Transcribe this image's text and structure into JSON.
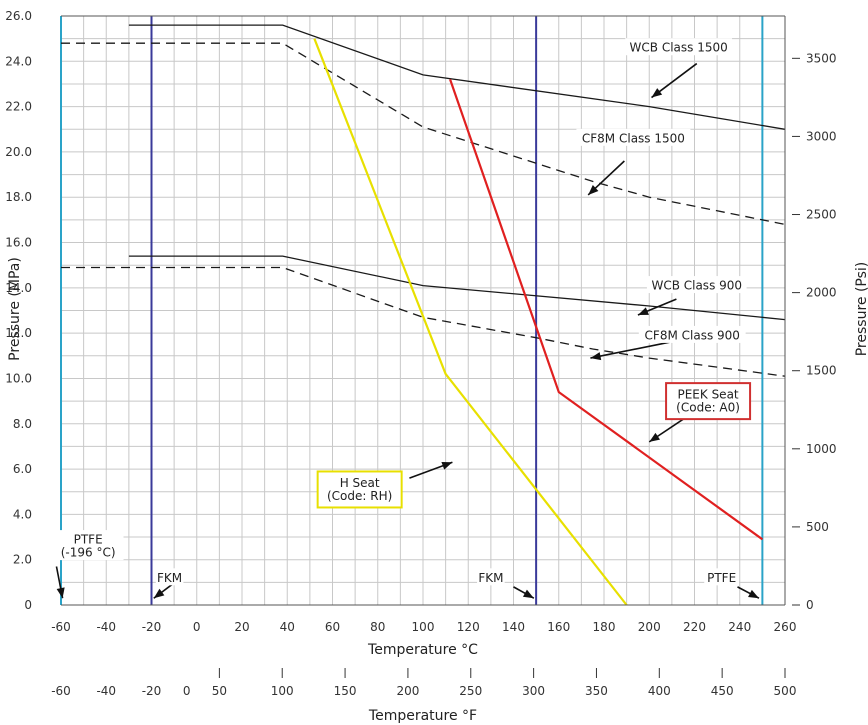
{
  "chart_data": {
    "type": "line",
    "xlabel": "Temperature °C",
    "ylabel": "Pressure (MPa)",
    "y2label": "Pressure (Psi)",
    "x2label": "Temperature °F",
    "xlim": [
      -60,
      260
    ],
    "ylim": [
      0,
      26
    ],
    "x_ticks": [
      -60,
      -40,
      -20,
      0,
      20,
      40,
      60,
      80,
      100,
      120,
      140,
      160,
      180,
      200,
      220,
      240,
      260
    ],
    "y_ticks": [
      "0",
      "2.0",
      "4.0",
      "6.0",
      "8.0",
      "10.0",
      "12.0",
      "14.0",
      "16.0",
      "18.0",
      "20.0",
      "22.0",
      "24.0",
      "26.0"
    ],
    "y2_ticks": [
      0,
      500,
      1000,
      1500,
      2000,
      2500,
      3000,
      3500
    ],
    "f_ticks_left": [
      -60,
      -40,
      -20,
      0
    ],
    "f_ticks": [
      50,
      100,
      150,
      200,
      250,
      300,
      350,
      400,
      450,
      500
    ],
    "grid": true,
    "series": [
      {
        "name": "WCB Class 1500",
        "style": "solid",
        "color": "#1a1a1a",
        "points": [
          [
            -30,
            25.6
          ],
          [
            38,
            25.6
          ],
          [
            100,
            23.4
          ],
          [
            200,
            22.0
          ],
          [
            260,
            21.0
          ]
        ]
      },
      {
        "name": "CF8M Class 1500",
        "style": "dashed",
        "color": "#1a1a1a",
        "points": [
          [
            -60,
            24.8
          ],
          [
            38,
            24.8
          ],
          [
            100,
            21.1
          ],
          [
            175,
            18.7
          ],
          [
            200,
            18.0
          ],
          [
            260,
            16.8
          ]
        ]
      },
      {
        "name": "WCB Class 900",
        "style": "solid",
        "color": "#1a1a1a",
        "points": [
          [
            -30,
            15.4
          ],
          [
            38,
            15.4
          ],
          [
            100,
            14.1
          ],
          [
            200,
            13.2
          ],
          [
            260,
            12.6
          ]
        ]
      },
      {
        "name": "CF8M Class 900",
        "style": "dashed",
        "color": "#1a1a1a",
        "points": [
          [
            -60,
            14.9
          ],
          [
            38,
            14.9
          ],
          [
            100,
            12.7
          ],
          [
            150,
            11.8
          ],
          [
            175,
            11.3
          ],
          [
            200,
            10.9
          ],
          [
            260,
            10.1
          ]
        ]
      },
      {
        "name": "H Seat",
        "style": "solid",
        "color": "#e8e000",
        "points": [
          [
            52,
            25.0
          ],
          [
            110,
            10.2
          ],
          [
            190,
            0
          ]
        ]
      },
      {
        "name": "PEEK Seat",
        "style": "solid",
        "color": "#e02020",
        "points": [
          [
            112,
            23.2
          ],
          [
            160,
            9.4
          ],
          [
            250,
            2.9
          ]
        ]
      }
    ],
    "vertical_lines": [
      {
        "x": -60,
        "color": "#2aa3c8"
      },
      {
        "x": -20,
        "color": "#3a3a9a"
      },
      {
        "x": 150,
        "color": "#3a3a9a"
      },
      {
        "x": 250,
        "color": "#2aa3c8"
      }
    ],
    "annotations": [
      {
        "lines": [
          "WCB Class 1500"
        ],
        "anchor": [
          213,
          24.6
        ]
      },
      {
        "lines": [
          "CF8M Class 1500"
        ],
        "anchor": [
          193,
          20.6
        ]
      },
      {
        "lines": [
          "WCB Class 900"
        ],
        "anchor": [
          221,
          14.1
        ]
      },
      {
        "lines": [
          "CF8M Class 900"
        ],
        "anchor": [
          219,
          11.9
        ]
      },
      {
        "lines": [
          "PEEK Seat",
          "(Code: A0)"
        ],
        "anchor": [
          226,
          9.0
        ],
        "box_color": "#d03030"
      },
      {
        "lines": [
          "H Seat",
          "(Code: RH)"
        ],
        "anchor": [
          72,
          5.1
        ],
        "box_color": "#e8e000"
      },
      {
        "lines": [
          "PTFE",
          "(-196 °C)"
        ],
        "anchor": [
          -48,
          2.6
        ]
      },
      {
        "lines": [
          "FKM"
        ],
        "anchor": [
          -12,
          1.2
        ]
      },
      {
        "lines": [
          "FKM"
        ],
        "anchor": [
          130,
          1.2
        ]
      },
      {
        "lines": [
          "PTFE"
        ],
        "anchor": [
          232,
          1.2
        ]
      }
    ],
    "arrows": [
      {
        "from": [
          221,
          23.9
        ],
        "to": [
          201,
          22.4
        ]
      },
      {
        "from": [
          189,
          19.6
        ],
        "to": [
          173,
          18.1
        ]
      },
      {
        "from": [
          212,
          13.5
        ],
        "to": [
          195,
          12.8
        ]
      },
      {
        "from": [
          209,
          11.6
        ],
        "to": [
          174,
          10.9
        ]
      },
      {
        "from": [
          218,
          8.4
        ],
        "to": [
          200,
          7.2
        ]
      },
      {
        "from": [
          94,
          5.6
        ],
        "to": [
          113,
          6.3
        ]
      },
      {
        "from": [
          -62,
          1.7
        ],
        "to": [
          -59.3,
          0.3
        ]
      },
      {
        "from": [
          -7,
          1.2
        ],
        "to": [
          -19,
          0.3
        ]
      },
      {
        "from": [
          140,
          0.8
        ],
        "to": [
          149,
          0.3
        ]
      },
      {
        "from": [
          239,
          0.8
        ],
        "to": [
          248.5,
          0.3
        ]
      }
    ]
  }
}
